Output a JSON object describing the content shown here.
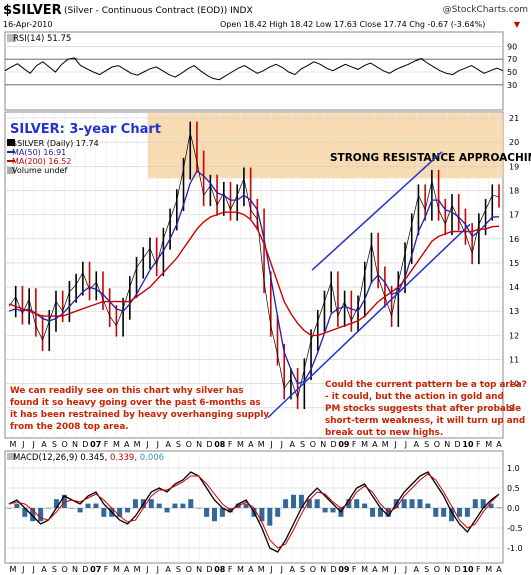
{
  "header": {
    "symbol": "$SILVER",
    "name": "(Silver - Continuous Contract (EOD))",
    "exchange": "INDX",
    "date": "16-Apr-2010",
    "quote": "Open 18.42  High 18.42  Low 17.63  Close 17.74  Chg -0.67 (-3.64%)",
    "change_arrow": "▼",
    "watermark": "@StockCharts.com"
  },
  "colors": {
    "price_up": "#000000",
    "price_down": "#cc0000",
    "ma50": "#2222aa",
    "ma200": "#cc0000",
    "resistance_fill": "#f8d7a8",
    "annotation_text": "#cc2200",
    "title_text": "#2233cc",
    "macd_fill": "#336699",
    "macd_signal": "#cc0000",
    "grid": "#cccccc",
    "rsi_overbought": "#2e7d32",
    "rsi_oversold": "#4a6fb0"
  },
  "chart_data": [
    {
      "type": "line",
      "panel": "rsi",
      "label": "RSI(14) 51.75",
      "ylim": [
        0,
        100
      ],
      "yticks": [
        30,
        50,
        70,
        90
      ],
      "reference_lines": [
        30,
        70
      ],
      "series": [
        {
          "name": "RSI(14)",
          "values": [
            52,
            58,
            63,
            55,
            48,
            60,
            66,
            58,
            50,
            62,
            70,
            72,
            60,
            55,
            50,
            46,
            52,
            58,
            60,
            54,
            48,
            45,
            50,
            55,
            58,
            52,
            46,
            42,
            48,
            55,
            60,
            52,
            45,
            40,
            38,
            44,
            50,
            56,
            60,
            54,
            48,
            52,
            58,
            62,
            57,
            50,
            46,
            55,
            60,
            66,
            62,
            56,
            52,
            57,
            62,
            58,
            54,
            60,
            64,
            58,
            52,
            48,
            54,
            58,
            62,
            67,
            71,
            64,
            58,
            52,
            48,
            46,
            52,
            56,
            60,
            54,
            48,
            52,
            56,
            52
          ]
        }
      ]
    },
    {
      "type": "line",
      "panel": "price",
      "title": "SILVER: 3-year Chart",
      "legend": [
        "$SILVER (Daily) 17.74",
        "MA(50) 16.91",
        "MA(200) 16.52",
        "Volume undef"
      ],
      "ylim": [
        8,
        21
      ],
      "yticks": [
        9,
        10,
        11,
        12,
        13,
        14,
        15,
        16,
        17,
        18,
        19,
        20,
        21
      ],
      "resistance_zone": [
        18.5,
        21.2
      ],
      "resistance_label": "STRONG RESISTANCE APPROACHING HIGHS",
      "annotations": [
        "We can readily see on this chart why silver has found it so heavy going over the past 6-months as it has been restrained by heavy overhanging supply from the 2008 top area.",
        "Could the current pattern be a top area? - it could, but the action in gold and PM stocks suggests that after probable short-term weakness, it will turn up and break out to new highs."
      ],
      "x_labels": [
        "M",
        "J",
        "J",
        "A",
        "S",
        "O",
        "N",
        "D",
        "07",
        "F",
        "M",
        "A",
        "M",
        "J",
        "J",
        "A",
        "S",
        "O",
        "N",
        "D",
        "08",
        "F",
        "M",
        "A",
        "M",
        "J",
        "J",
        "A",
        "S",
        "O",
        "N",
        "D",
        "09",
        "F",
        "M",
        "A",
        "M",
        "J",
        "J",
        "A",
        "S",
        "O",
        "N",
        "D",
        "10",
        "F",
        "M",
        "A"
      ],
      "series": [
        {
          "name": "$SILVER",
          "values": [
            13.2,
            13.6,
            12.9,
            13.5,
            12.4,
            11.8,
            12.6,
            13.4,
            13.0,
            13.8,
            14.1,
            14.6,
            13.9,
            14.2,
            13.5,
            12.8,
            12.4,
            13.1,
            14.0,
            14.8,
            15.2,
            15.6,
            14.9,
            16.0,
            16.8,
            17.6,
            18.9,
            20.4,
            19.2,
            17.8,
            18.2,
            17.4,
            17.9,
            17.2,
            17.8,
            18.5,
            17.2,
            16.8,
            14.2,
            12.4,
            11.2,
            9.8,
            10.2,
            9.4,
            10.6,
            11.8,
            12.6,
            13.4,
            14.2,
            12.8,
            13.4,
            12.6,
            13.2,
            14.6,
            15.8,
            14.4,
            13.6,
            12.8,
            14.2,
            15.4,
            16.6,
            17.8,
            17.2,
            18.4,
            17.2,
            16.6,
            17.4,
            16.8,
            16.2,
            15.4,
            16.6,
            17.2,
            17.8,
            17.74
          ]
        },
        {
          "name": "MA(50)",
          "values": [
            13.0,
            13.1,
            13.0,
            13.1,
            12.9,
            12.7,
            12.6,
            12.7,
            12.9,
            13.2,
            13.5,
            13.8,
            14.0,
            13.9,
            13.7,
            13.4,
            13.1,
            13.0,
            13.3,
            13.7,
            14.2,
            14.7,
            15.1,
            15.5,
            16.0,
            16.6,
            17.4,
            18.3,
            18.8,
            18.6,
            18.3,
            17.9,
            17.8,
            17.6,
            17.6,
            17.8,
            17.6,
            17.2,
            16.0,
            14.4,
            12.8,
            11.3,
            10.6,
            10.0,
            10.1,
            10.6,
            11.3,
            12.1,
            12.9,
            13.1,
            13.2,
            13.1,
            13.0,
            13.5,
            14.2,
            14.5,
            14.2,
            13.7,
            13.8,
            14.4,
            15.3,
            16.3,
            16.9,
            17.6,
            17.6,
            17.2,
            17.1,
            16.9,
            16.6,
            16.1,
            16.3,
            16.6,
            16.9,
            16.91
          ]
        },
        {
          "name": "MA(200)",
          "values": [
            13.3,
            13.2,
            13.1,
            13.0,
            12.9,
            12.8,
            12.8,
            12.8,
            12.8,
            12.9,
            13.0,
            13.1,
            13.2,
            13.3,
            13.4,
            13.4,
            13.4,
            13.4,
            13.4,
            13.6,
            13.8,
            14.0,
            14.3,
            14.6,
            14.9,
            15.2,
            15.6,
            16.0,
            16.4,
            16.7,
            16.9,
            17.0,
            17.1,
            17.1,
            17.1,
            17.0,
            16.8,
            16.4,
            15.8,
            15.0,
            14.2,
            13.4,
            12.9,
            12.5,
            12.2,
            12.0,
            12.0,
            12.1,
            12.2,
            12.3,
            12.4,
            12.5,
            12.6,
            12.8,
            13.1,
            13.4,
            13.6,
            13.8,
            14.0,
            14.3,
            14.7,
            15.1,
            15.5,
            15.9,
            16.1,
            16.2,
            16.3,
            16.3,
            16.3,
            16.3,
            16.4,
            16.4,
            16.5,
            16.52
          ]
        }
      ]
    },
    {
      "type": "line",
      "panel": "macd",
      "label_prefix": "MACD(12,26,9)",
      "macd_value": "0.345",
      "signal_value": "0.339",
      "hist_value": "0.006",
      "ylim": [
        -1.25,
        1.15
      ],
      "yticks": [
        -1.0,
        -0.5,
        0.0,
        0.5,
        1.0
      ],
      "x_labels": [
        "M",
        "J",
        "J",
        "A",
        "S",
        "O",
        "N",
        "D",
        "07",
        "F",
        "M",
        "A",
        "M",
        "J",
        "J",
        "A",
        "S",
        "O",
        "N",
        "D",
        "08",
        "F",
        "M",
        "A",
        "M",
        "J",
        "J",
        "A",
        "S",
        "O",
        "N",
        "D",
        "09",
        "F",
        "M",
        "A",
        "M",
        "J",
        "J",
        "A",
        "S",
        "O",
        "N",
        "D",
        "10",
        "F",
        "M",
        "A"
      ],
      "series": [
        {
          "name": "MACD",
          "values": [
            0.1,
            0.2,
            0.0,
            -0.2,
            -0.4,
            -0.3,
            0.0,
            0.3,
            0.2,
            0.1,
            0.3,
            0.4,
            0.1,
            -0.1,
            -0.3,
            -0.4,
            -0.2,
            0.1,
            0.4,
            0.5,
            0.4,
            0.6,
            0.7,
            0.9,
            0.8,
            0.5,
            0.2,
            0.0,
            -0.1,
            0.1,
            0.2,
            -0.1,
            -0.5,
            -1.0,
            -1.1,
            -0.8,
            -0.4,
            0.0,
            0.3,
            0.5,
            0.3,
            0.1,
            -0.1,
            0.2,
            0.5,
            0.6,
            0.3,
            0.0,
            -0.2,
            0.1,
            0.4,
            0.6,
            0.8,
            0.9,
            0.6,
            0.3,
            -0.1,
            -0.4,
            -0.6,
            -0.3,
            0.0,
            0.2,
            0.345
          ]
        },
        {
          "name": "Signal",
          "values": [
            0.1,
            0.15,
            0.1,
            -0.05,
            -0.25,
            -0.3,
            -0.1,
            0.15,
            0.2,
            0.15,
            0.25,
            0.35,
            0.2,
            0.0,
            -0.2,
            -0.35,
            -0.3,
            0.0,
            0.3,
            0.45,
            0.45,
            0.55,
            0.65,
            0.8,
            0.8,
            0.6,
            0.35,
            0.1,
            -0.05,
            0.05,
            0.15,
            0.0,
            -0.35,
            -0.8,
            -1.0,
            -0.9,
            -0.55,
            -0.15,
            0.2,
            0.4,
            0.35,
            0.15,
            0.0,
            0.1,
            0.4,
            0.55,
            0.4,
            0.1,
            -0.1,
            0.0,
            0.3,
            0.5,
            0.7,
            0.85,
            0.7,
            0.4,
            0.05,
            -0.3,
            -0.5,
            -0.4,
            -0.1,
            0.15,
            0.339
          ]
        }
      ]
    }
  ]
}
